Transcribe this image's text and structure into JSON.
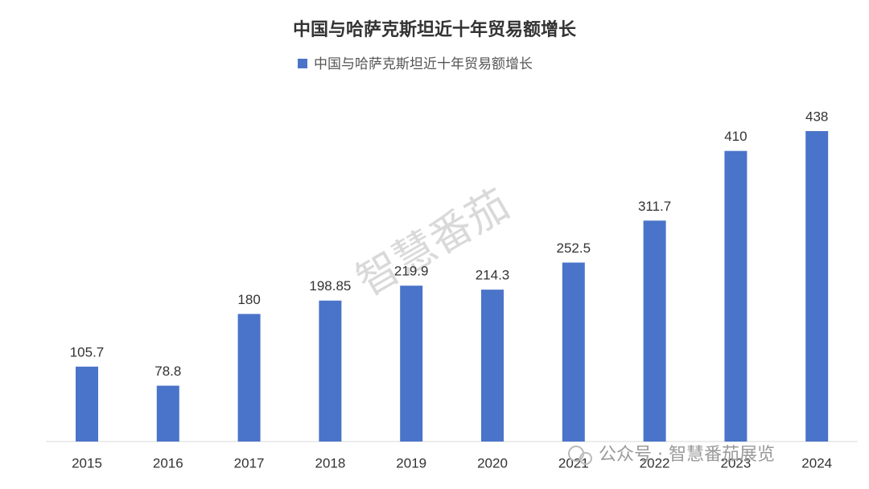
{
  "chart_data": {
    "type": "bar",
    "title": "中国与哈萨克斯坦近十年贸易额增长",
    "categories": [
      "2015",
      "2016",
      "2017",
      "2018",
      "2019",
      "2020",
      "2021",
      "2022",
      "2023",
      "2024"
    ],
    "series": [
      {
        "name": "中国与哈萨克斯坦近十年贸易额增长",
        "color": "#4a74c9",
        "values": [
          105.7,
          78.8,
          180,
          198.85,
          219.9,
          214.3,
          252.5,
          311.7,
          410,
          438
        ]
      }
    ],
    "ylim": [
      0,
      450
    ],
    "legend": "top",
    "data_labels": true,
    "watermarks": [
      "智慧番茄",
      "公众号 · 智慧番茄展览"
    ]
  }
}
